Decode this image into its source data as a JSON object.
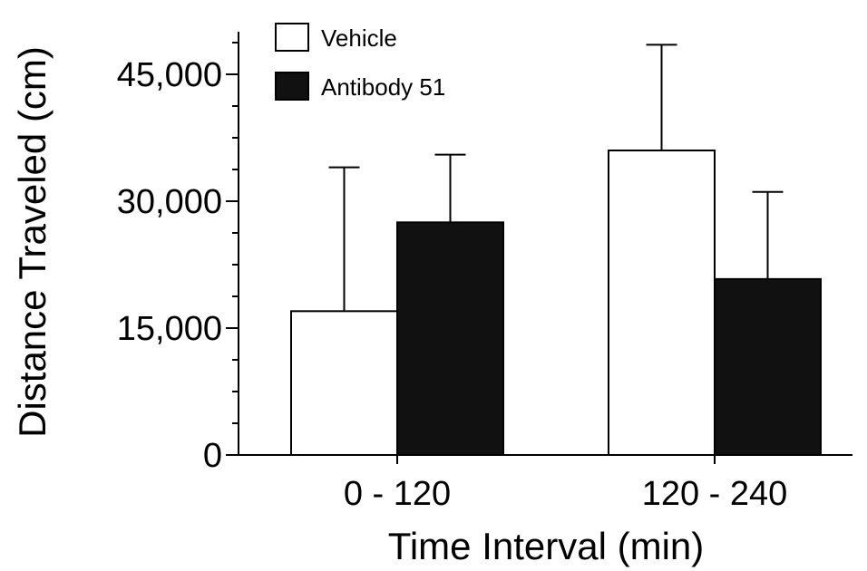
{
  "chart_data": {
    "type": "bar",
    "title": "",
    "xlabel": "Time Interval (min)",
    "ylabel": "Distance Traveled (cm)",
    "categories": [
      "0 - 120",
      "120 - 240"
    ],
    "ylim": [
      0,
      50000
    ],
    "yticks": [
      0,
      15000,
      30000,
      45000
    ],
    "ytick_labels": [
      "0",
      "15,000",
      "30,000",
      "45,000"
    ],
    "legend_position": "top-left",
    "grid": false,
    "series": [
      {
        "name": "Vehicle",
        "values": [
          17000,
          36000
        ],
        "errors": [
          17000,
          12500
        ],
        "color": "#ffffff"
      },
      {
        "name": "Antibody 51",
        "values": [
          27500,
          20800
        ],
        "errors": [
          8000,
          10300
        ],
        "color": "#111111"
      }
    ]
  }
}
